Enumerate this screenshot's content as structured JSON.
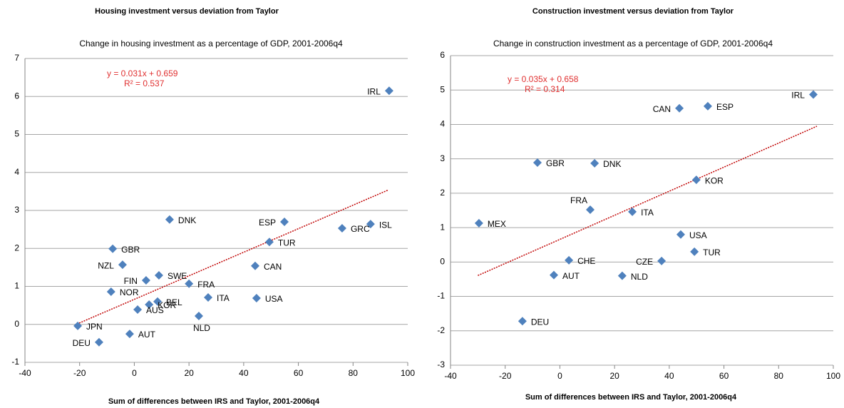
{
  "chart_data": [
    {
      "type": "scatter",
      "title": "Housing investment versus deviation from Taylor",
      "subtitle": "Change in housing investment as a percentage of GDP, 2001-2006q4",
      "x_label": "Sum of differences between IRS and Taylor, 2001-2006q4",
      "color": "#4f81bd",
      "labels": [
        "IRL",
        "ISL",
        "GRC",
        "ESP",
        "TUR",
        "CAN",
        "USA",
        "DNK",
        "ITA",
        "NLD",
        "FRA",
        "SWE",
        "FIN",
        "BEL",
        "KOR",
        "AUS",
        "NOR",
        "NZL",
        "GBR",
        "JPN",
        "DEU",
        "AUT"
      ],
      "x": [
        93.2,
        86.4,
        76,
        54.9,
        49.4,
        44.2,
        44.7,
        12.9,
        27,
        23.6,
        20,
        9,
        4.3,
        8.5,
        5.4,
        1.2,
        -8.5,
        -4.3,
        -7.9,
        -20.7,
        -12.9,
        -1.7
      ],
      "y": [
        6.15,
        2.64,
        2.53,
        2.7,
        2.17,
        1.54,
        0.69,
        2.76,
        0.71,
        0.22,
        1.07,
        1.29,
        1.16,
        0.6,
        0.52,
        0.39,
        0.86,
        1.57,
        1.99,
        -0.04,
        -0.47,
        -0.25
      ],
      "trendline": {
        "slope": 0.031,
        "intercept": 0.659,
        "color": "#c00000",
        "x_range": [
          -21,
          93
        ]
      },
      "equation": "y = 0.031x + 0.659",
      "r_squared": "R² = 0.537",
      "xlim": [
        -40,
        100
      ],
      "xticks": [
        -40,
        -20,
        0,
        20,
        40,
        60,
        80,
        100
      ],
      "ylim": [
        -1,
        7
      ],
      "yticks": [
        -1,
        0,
        1,
        2,
        3,
        4,
        5,
        6,
        7
      ],
      "grid": true
    },
    {
      "type": "scatter",
      "title": "Construction investment versus deviation from Taylor",
      "subtitle": "Change in construction investment as a percentage of GDP, 2001-2006q4",
      "x_label": "Sum of differences between IRS and Taylor, 2001-2006q4",
      "color": "#4f81bd",
      "labels": [
        "IRL",
        "ESP",
        "CAN",
        "KOR",
        "DNK",
        "GBR",
        "FRA",
        "ITA",
        "MEX",
        "USA",
        "TUR",
        "CHE",
        "CZE",
        "AUT",
        "NLD",
        "DEU"
      ],
      "x": [
        92.7,
        54.1,
        43.7,
        49.9,
        12.7,
        -8.2,
        11.1,
        26.5,
        -29.6,
        44.2,
        49.2,
        3.3,
        37.2,
        -2.2,
        22.8,
        -13.7
      ],
      "y": [
        4.87,
        4.53,
        4.47,
        2.39,
        2.87,
        2.89,
        1.52,
        1.46,
        1.13,
        0.8,
        0.3,
        0.05,
        0.03,
        -0.38,
        -0.4,
        -1.72
      ],
      "trendline": {
        "slope": 0.035,
        "intercept": 0.658,
        "color": "#c00000",
        "x_range": [
          -30,
          94
        ]
      },
      "equation": "y = 0.035x + 0.658",
      "r_squared": "R² = 0.314",
      "xlim": [
        -40,
        100
      ],
      "xticks": [
        -40,
        -20,
        0,
        20,
        40,
        60,
        80,
        100
      ],
      "ylim": [
        -3,
        6
      ],
      "yticks": [
        -3,
        -2,
        -1,
        0,
        1,
        2,
        3,
        4,
        5,
        6
      ],
      "grid": true
    }
  ]
}
